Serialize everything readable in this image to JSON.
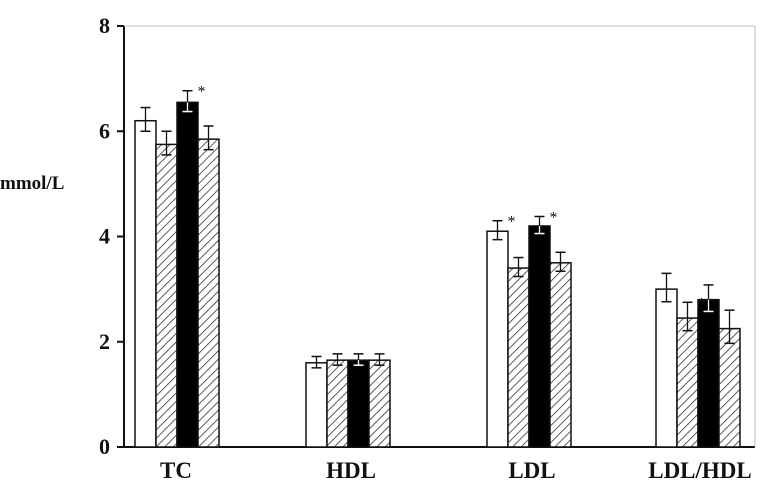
{
  "chart_data": {
    "type": "bar",
    "title": "",
    "xlabel": "",
    "ylabel": "mmol/L",
    "ylim": [
      0,
      8
    ],
    "yticks": [
      0,
      2,
      4,
      6,
      8
    ],
    "grid": false,
    "legend": "none",
    "categories": [
      "TC",
      "HDL",
      "LDL",
      "LDL/HDL"
    ],
    "series": [
      {
        "fill": "white",
        "values": [
          6.2,
          1.6,
          4.1,
          3.0
        ],
        "errors": [
          0.25,
          0.12,
          0.2,
          0.3
        ]
      },
      {
        "fill": "hatched",
        "values": [
          5.75,
          1.65,
          3.4,
          2.45
        ],
        "errors": [
          0.25,
          0.12,
          0.2,
          0.3
        ]
      },
      {
        "fill": "black",
        "values": [
          6.55,
          1.65,
          4.2,
          2.8
        ],
        "errors": [
          0.22,
          0.12,
          0.18,
          0.28
        ]
      },
      {
        "fill": "hatched",
        "values": [
          5.85,
          1.65,
          3.5,
          2.25
        ],
        "errors": [
          0.25,
          0.12,
          0.2,
          0.35
        ]
      }
    ],
    "annotations": [
      {
        "category": "TC",
        "series": 2,
        "text": "*"
      },
      {
        "category": "LDL",
        "series": 0,
        "text": "*"
      },
      {
        "category": "LDL",
        "series": 2,
        "text": "*"
      },
      {
        "category": "LDL/HDL",
        "series": 1,
        "text": "*"
      }
    ],
    "colors": {
      "white": "#ffffff",
      "black": "#000000",
      "stroke": "#111111",
      "hatch": "#333333"
    }
  }
}
